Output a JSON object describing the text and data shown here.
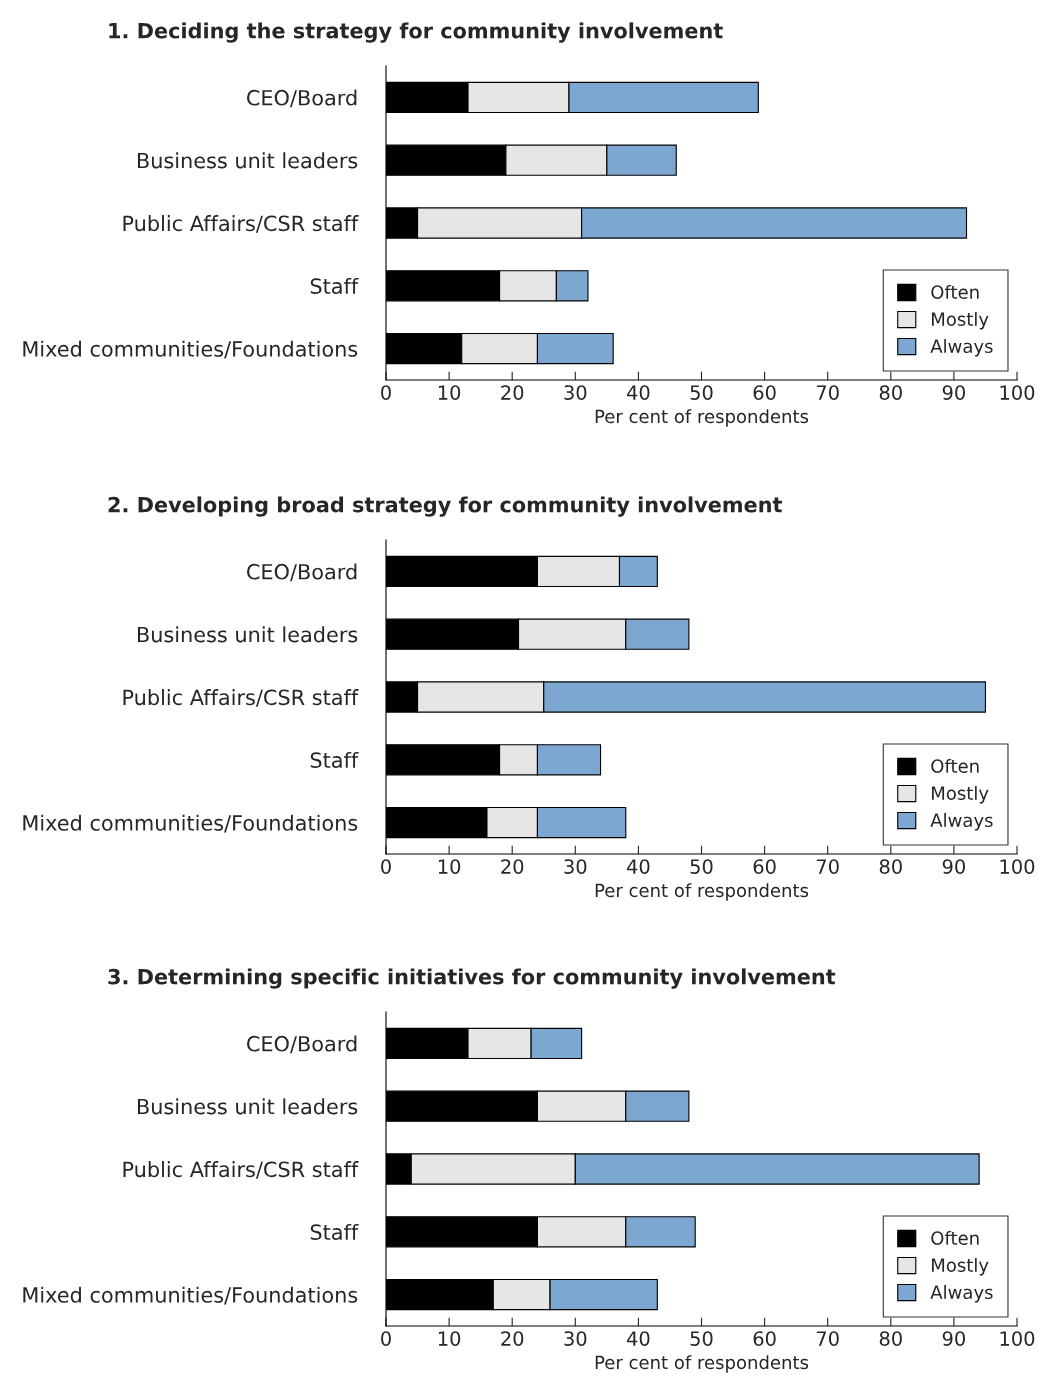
{
  "chart_data": [
    {
      "type": "bar",
      "orientation": "horizontal",
      "stacked": true,
      "title": "1. Deciding the strategy for community involvement",
      "xlabel": "Per cent of respondents",
      "categories": [
        "CEO/Board",
        "Business unit leaders",
        "Public Affairs/CSR staff",
        "Staff",
        "Mixed communities/Foundations"
      ],
      "series": [
        {
          "name": "Often",
          "color": "#000000",
          "values": [
            13,
            19,
            5,
            18,
            12
          ]
        },
        {
          "name": "Mostly",
          "color": "#e6e6e6",
          "values": [
            16,
            16,
            26,
            9,
            12
          ]
        },
        {
          "name": "Always",
          "color": "#7ba7d0",
          "values": [
            30,
            11,
            61,
            5,
            12
          ]
        }
      ],
      "xlim": [
        0,
        100
      ],
      "xticks": [
        0,
        10,
        20,
        30,
        40,
        50,
        60,
        70,
        80,
        90,
        100
      ],
      "legend": "bottom right",
      "grid": false
    },
    {
      "type": "bar",
      "orientation": "horizontal",
      "stacked": true,
      "title": "2. Developing broad strategy for community involvement",
      "xlabel": "Per cent of respondents",
      "categories": [
        "CEO/Board",
        "Business unit leaders",
        "Public Affairs/CSR staff",
        "Staff",
        "Mixed communities/Foundations"
      ],
      "series": [
        {
          "name": "Often",
          "color": "#000000",
          "values": [
            24,
            21,
            5,
            18,
            16
          ]
        },
        {
          "name": "Mostly",
          "color": "#e6e6e6",
          "values": [
            13,
            17,
            20,
            6,
            8
          ]
        },
        {
          "name": "Always",
          "color": "#7ba7d0",
          "values": [
            6,
            10,
            70,
            10,
            14
          ]
        }
      ],
      "xlim": [
        0,
        100
      ],
      "xticks": [
        0,
        10,
        20,
        30,
        40,
        50,
        60,
        70,
        80,
        90,
        100
      ],
      "legend": "bottom right",
      "grid": false
    },
    {
      "type": "bar",
      "orientation": "horizontal",
      "stacked": true,
      "title": "3. Determining specific initiatives for community involvement",
      "xlabel": "Per cent of respondents",
      "categories": [
        "CEO/Board",
        "Business unit leaders",
        "Public Affairs/CSR staff",
        "Staff",
        "Mixed communities/Foundations"
      ],
      "series": [
        {
          "name": "Often",
          "color": "#000000",
          "values": [
            13,
            24,
            4,
            24,
            17
          ]
        },
        {
          "name": "Mostly",
          "color": "#e6e6e6",
          "values": [
            10,
            14,
            26,
            14,
            9
          ]
        },
        {
          "name": "Always",
          "color": "#7ba7d0",
          "values": [
            8,
            10,
            64,
            11,
            17
          ]
        }
      ],
      "xlim": [
        0,
        100
      ],
      "xticks": [
        0,
        10,
        20,
        30,
        40,
        50,
        60,
        70,
        80,
        90,
        100
      ],
      "legend": "bottom right",
      "grid": false
    }
  ]
}
